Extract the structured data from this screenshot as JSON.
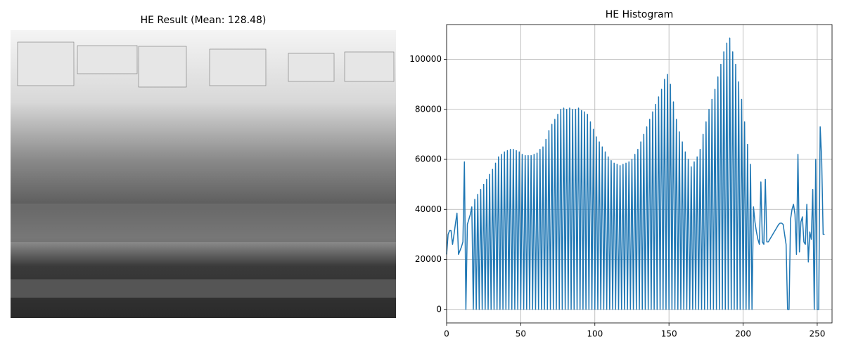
{
  "chart_data": [
    {
      "type": "image",
      "title": "HE Result (Mean: 128.48)"
    },
    {
      "type": "line",
      "title": "HE Histogram",
      "color": "#1f77b4",
      "grid": true,
      "xlim": [
        0,
        260
      ],
      "ylim": [
        -5400,
        113900
      ],
      "xticks": [
        0,
        50,
        100,
        150,
        200,
        250
      ],
      "yticks": [
        0,
        20000,
        40000,
        60000,
        80000,
        100000
      ],
      "x": [
        0,
        1,
        2,
        3,
        4,
        5,
        6,
        7,
        8,
        9,
        10,
        11,
        12,
        13,
        14,
        15,
        16,
        17,
        18,
        19,
        20,
        21,
        22,
        23,
        24,
        25,
        26,
        27,
        28,
        29,
        30,
        31,
        32,
        33,
        34,
        35,
        36,
        37,
        38,
        39,
        40,
        41,
        42,
        43,
        44,
        45,
        46,
        47,
        48,
        49,
        50,
        51,
        52,
        53,
        54,
        55,
        56,
        57,
        58,
        59,
        60,
        61,
        62,
        63,
        64,
        65,
        66,
        67,
        68,
        69,
        70,
        71,
        72,
        73,
        74,
        75,
        76,
        77,
        78,
        79,
        80,
        81,
        82,
        83,
        84,
        85,
        86,
        87,
        88,
        89,
        90,
        91,
        92,
        93,
        94,
        95,
        96,
        97,
        98,
        99,
        100,
        101,
        102,
        103,
        104,
        105,
        106,
        107,
        108,
        109,
        110,
        111,
        112,
        113,
        114,
        115,
        116,
        117,
        118,
        119,
        120,
        121,
        122,
        123,
        124,
        125,
        126,
        127,
        128,
        129,
        130,
        131,
        132,
        133,
        134,
        135,
        136,
        137,
        138,
        139,
        140,
        141,
        142,
        143,
        144,
        145,
        146,
        147,
        148,
        149,
        150,
        151,
        152,
        153,
        154,
        155,
        156,
        157,
        158,
        159,
        160,
        161,
        162,
        163,
        164,
        165,
        166,
        167,
        168,
        169,
        170,
        171,
        172,
        173,
        174,
        175,
        176,
        177,
        178,
        179,
        180,
        181,
        182,
        183,
        184,
        185,
        186,
        187,
        188,
        189,
        190,
        191,
        192,
        193,
        194,
        195,
        196,
        197,
        198,
        199,
        200,
        201,
        202,
        203,
        204,
        205,
        206,
        207,
        208,
        209,
        210,
        211,
        212,
        213,
        214,
        215,
        216,
        217,
        218,
        219,
        220,
        221,
        222,
        223,
        224,
        225,
        226,
        227,
        228,
        229,
        230,
        231,
        232,
        233,
        234,
        235,
        236,
        237,
        238,
        239,
        240,
        241,
        242,
        243,
        244,
        245,
        246,
        247,
        248,
        249,
        250,
        251,
        252,
        253,
        254,
        255
      ],
      "values": [
        22000,
        30000,
        31500,
        31500,
        26000,
        30000,
        34500,
        38500,
        22000,
        23500,
        25000,
        27000,
        59000,
        0,
        34000,
        36000,
        38000,
        41000,
        0,
        44000,
        0,
        46000,
        0,
        48000,
        0,
        50000,
        0,
        52000,
        0,
        54000,
        0,
        56000,
        0,
        58500,
        0,
        61000,
        0,
        62000,
        0,
        63000,
        0,
        63500,
        0,
        64000,
        0,
        64000,
        0,
        63500,
        0,
        63000,
        0,
        62000,
        0,
        61500,
        0,
        61500,
        0,
        61500,
        0,
        62000,
        0,
        62500,
        0,
        64000,
        0,
        65000,
        0,
        68000,
        0,
        71500,
        0,
        74000,
        0,
        76000,
        0,
        78000,
        0,
        80000,
        0,
        80500,
        0,
        80000,
        0,
        80500,
        0,
        80000,
        0,
        80000,
        0,
        80500,
        0,
        79500,
        0,
        79000,
        0,
        78000,
        0,
        75000,
        0,
        72000,
        0,
        69000,
        0,
        67000,
        0,
        65000,
        0,
        63000,
        0,
        61000,
        0,
        59500,
        0,
        58500,
        0,
        58000,
        0,
        57500,
        0,
        58000,
        0,
        58500,
        0,
        59000,
        0,
        60000,
        0,
        62000,
        0,
        64000,
        0,
        67000,
        0,
        70000,
        0,
        73000,
        0,
        76000,
        0,
        79000,
        0,
        82000,
        0,
        85000,
        0,
        88000,
        0,
        92000,
        0,
        94000,
        0,
        90000,
        0,
        83000,
        0,
        76000,
        0,
        71000,
        0,
        67000,
        0,
        63000,
        0,
        60000,
        0,
        57000,
        0,
        59000,
        0,
        61000,
        0,
        64000,
        0,
        70000,
        0,
        75000,
        0,
        80000,
        0,
        84000,
        0,
        88000,
        0,
        93000,
        0,
        98000,
        0,
        103000,
        0,
        106500,
        0,
        108500,
        0,
        103000,
        0,
        98000,
        0,
        91000,
        0,
        84000,
        0,
        75000,
        0,
        66000,
        0,
        58000,
        0,
        41000,
        35000,
        31000,
        28000,
        26000,
        51000,
        27000,
        26000,
        52000,
        27000,
        27000,
        28000,
        29000,
        30000,
        31000,
        32000,
        33000,
        34000,
        34500,
        34500,
        34000,
        30000,
        26000,
        0,
        0,
        36000,
        40000,
        42000,
        38000,
        22000,
        62000,
        23000,
        35000,
        37000,
        27000,
        26000,
        42000,
        19000,
        31000,
        28000,
        48000,
        0,
        60000,
        0,
        0,
        73000,
        60000,
        30000,
        30000
      ]
    }
  ]
}
